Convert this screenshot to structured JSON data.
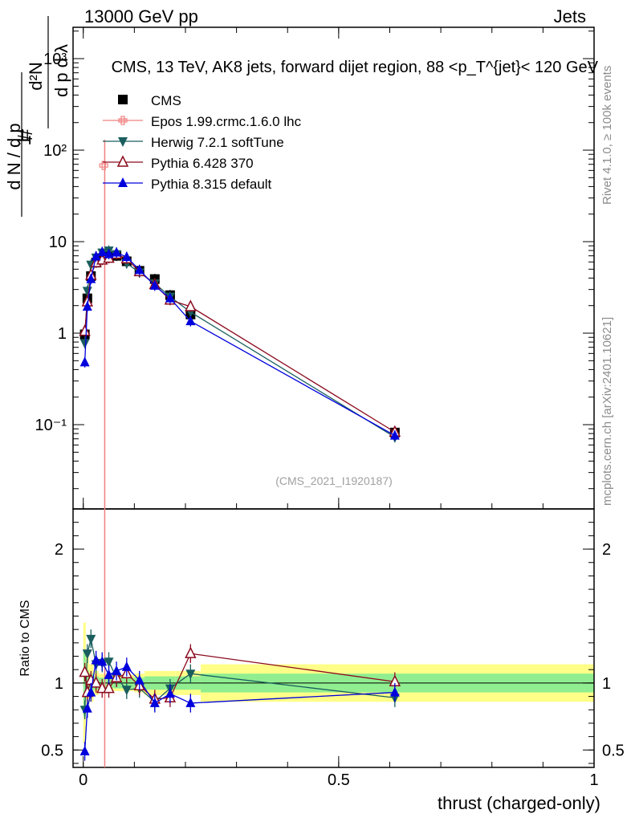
{
  "header": {
    "energy": "13000 GeV pp",
    "category": "Jets"
  },
  "side_labels": {
    "rivet": "Rivet 4.1.0, ≥ 100k events",
    "mcplots": "mcplots.cern.ch [arXiv:2401.10621]"
  },
  "chart_data": {
    "type": "scatter",
    "title": "CMS, 13 TeV, AK8 jets, forward dijet region, 88 <p_T^{jet}< 120 GeV",
    "watermark": "(CMS_2021_I1920187)",
    "xlabel": "thrust (charged-only)",
    "ylabel": "1/(dN/dp_T) d²N/(dp_T dλ)",
    "ylabel_ratio": "Ratio to CMS",
    "xlim": [
      -0.02,
      1.0
    ],
    "ylim": [
      0.012,
      2200
    ],
    "yscale": "log",
    "ratio_ylim": [
      0.37,
      2.3
    ],
    "x_ticks": [
      {
        "v": 0,
        "label": "0"
      },
      {
        "v": 0.5,
        "label": "0.5"
      },
      {
        "v": 1,
        "label": "1"
      }
    ],
    "y_ticks": [
      {
        "v": 0.1,
        "label": "10⁻¹"
      },
      {
        "v": 1,
        "label": "1"
      },
      {
        "v": 10,
        "label": "10"
      },
      {
        "v": 100,
        "label": "10²"
      },
      {
        "v": 1000,
        "label": "10³"
      }
    ],
    "ratio_ticks": [
      {
        "v": 0.5,
        "label": "0.5"
      },
      {
        "v": 1,
        "label": "1"
      },
      {
        "v": 2,
        "label": "2"
      }
    ],
    "x": [
      0.003,
      0.008,
      0.015,
      0.025,
      0.037,
      0.05,
      0.065,
      0.085,
      0.11,
      0.14,
      0.17,
      0.21,
      0.61
    ],
    "series": [
      {
        "name": "CMS",
        "color": "#000000",
        "marker": "square",
        "values": [
          0.97,
          2.4,
          4.2,
          5.9,
          6.6,
          6.9,
          7.0,
          6.1,
          4.8,
          3.9,
          2.6,
          1.6,
          0.082
        ],
        "ratio": [
          1,
          1,
          1,
          1,
          1,
          1,
          1,
          1,
          1,
          1,
          1,
          1,
          1
        ]
      },
      {
        "name": "Epos 1.99.crmc.1.6.0 lhc",
        "color": "#f08080",
        "marker": "cross-open",
        "points": [
          {
            "x": 0.04,
            "y": 68
          }
        ],
        "spike_x": 0.042,
        "spike_top": 130
      },
      {
        "name": "Herwig 7.2.1 softTune",
        "color": "#1a5e5e",
        "marker": "triangle-down",
        "values": [
          0.78,
          2.9,
          5.6,
          6.7,
          7.6,
          8.0,
          7.3,
          5.8,
          4.6,
          3.5,
          2.5,
          1.7,
          0.073
        ],
        "ratio": [
          0.8,
          1.22,
          1.33,
          1.14,
          1.15,
          1.16,
          1.04,
          0.95,
          0.96,
          0.86,
          0.96,
          1.07,
          0.89
        ]
      },
      {
        "name": "Pythia 6.428 370",
        "color": "#8b0a1e",
        "marker": "triangle-open",
        "values": [
          1.05,
          2.2,
          4.3,
          5.9,
          6.3,
          6.6,
          7.3,
          6.5,
          4.7,
          3.4,
          2.3,
          1.95,
          0.083
        ],
        "ratio": [
          1.08,
          0.93,
          1.02,
          1.0,
          0.96,
          0.96,
          1.04,
          1.07,
          0.98,
          0.88,
          0.89,
          1.22,
          1.01
        ]
      },
      {
        "name": "Pythia 8.315 default",
        "color": "#0000dd",
        "marker": "triangle-up",
        "values": [
          0.48,
          1.95,
          3.9,
          6.9,
          7.7,
          7.3,
          7.6,
          6.8,
          4.9,
          3.3,
          2.4,
          1.35,
          0.076
        ],
        "ratio": [
          0.49,
          0.81,
          0.93,
          1.17,
          1.16,
          1.06,
          1.09,
          1.12,
          1.02,
          0.85,
          0.92,
          0.85,
          0.93
        ]
      }
    ],
    "uncertainty_bands": {
      "edges": [
        0.0,
        0.005,
        0.011,
        0.02,
        0.03,
        0.045,
        0.06,
        0.075,
        0.1,
        0.12,
        0.16,
        0.18,
        0.23,
        1.0
      ],
      "inner": [
        0.25,
        0.1,
        0.07,
        0.05,
        0.04,
        0.04,
        0.04,
        0.04,
        0.04,
        0.05,
        0.05,
        0.05,
        0.07
      ],
      "outer": [
        0.45,
        0.2,
        0.14,
        0.09,
        0.07,
        0.06,
        0.06,
        0.06,
        0.07,
        0.09,
        0.09,
        0.09,
        0.14
      ]
    }
  }
}
